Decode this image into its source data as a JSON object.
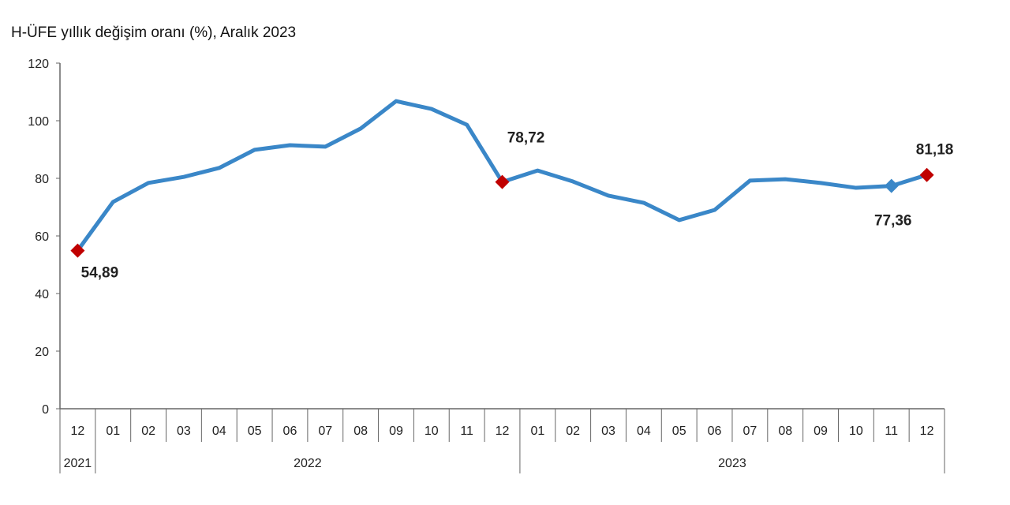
{
  "chart_data": {
    "type": "line",
    "title": "H-ÜFE yıllık değişim oranı (%), Aralık 2023",
    "categories": [
      "12",
      "01",
      "02",
      "03",
      "04",
      "05",
      "06",
      "07",
      "08",
      "09",
      "10",
      "11",
      "12",
      "01",
      "02",
      "03",
      "04",
      "05",
      "06",
      "07",
      "08",
      "09",
      "10",
      "11",
      "12"
    ],
    "year_groups": [
      {
        "label": "2021",
        "count": 1
      },
      {
        "label": "2022",
        "count": 12
      },
      {
        "label": "2023",
        "count": 12
      }
    ],
    "series": [
      {
        "values": [
          54.89,
          71.8,
          78.4,
          80.5,
          83.6,
          89.9,
          91.5,
          91.0,
          97.3,
          106.8,
          104.1,
          98.6,
          78.72,
          82.7,
          78.9,
          74.0,
          71.5,
          65.5,
          69.0,
          79.2,
          79.7,
          78.4,
          76.7,
          77.36,
          81.18
        ]
      }
    ],
    "data_labels": [
      {
        "index": 0,
        "text": "54,89",
        "marker": "diamond",
        "color": "#c00000"
      },
      {
        "index": 12,
        "text": "78,72",
        "marker": "diamond",
        "color": "#c00000"
      },
      {
        "index": 23,
        "text": "77,36",
        "marker": "diamond",
        "color": "#3a87c8"
      },
      {
        "index": 24,
        "text": "81,18",
        "marker": "diamond",
        "color": "#c00000"
      }
    ],
    "ylim": [
      0,
      120
    ],
    "yticks": [
      0,
      20,
      40,
      60,
      80,
      100,
      120
    ],
    "grid": false,
    "line_color": "#3a87c8",
    "xlabel": "",
    "ylabel": ""
  }
}
